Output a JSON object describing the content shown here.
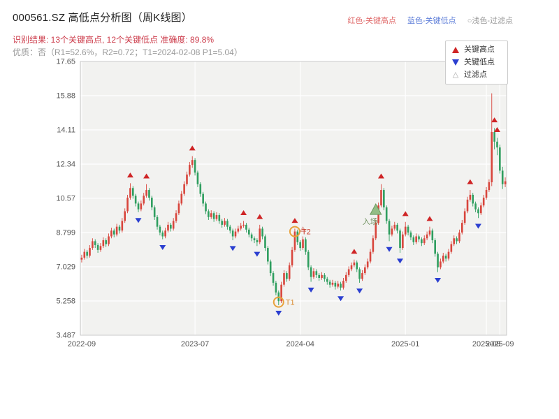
{
  "header": {
    "title": "000561.SZ 高低点分析图（周K线图）",
    "legend_inline": [
      {
        "label": "红色-关键高点",
        "color": "#e06c6c"
      },
      {
        "label": "蓝色-关键低点",
        "color": "#5f7fd9"
      },
      {
        "label": "○浅色-过滤点",
        "color": "#999999"
      }
    ],
    "result_line": "识别结果: 13个关键高点, 12个关键低点  准确度: 89.8%",
    "quality_line": "优质：否（R1=52.6%，R2=0.72；T1=2024-02-08 P1=5.04）"
  },
  "legend_box": {
    "items": [
      {
        "label": "关键高点"
      },
      {
        "label": "关键低点"
      },
      {
        "label": "过滤点"
      }
    ]
  },
  "colors": {
    "up_candle": "#d8453c",
    "down_candle": "#2f9e5f",
    "key_high": "#cf2526",
    "key_low": "#2b3fd0",
    "filtered_fill": "#f4cdc6",
    "filtered_stroke": "#d89a92",
    "entry_fill": "#93bd85",
    "entry_stroke": "#6a9a5f",
    "entry_label": "#6b8e5a",
    "t_circle": "#e8a23c",
    "t1_label": "#d98b2f",
    "t2_label": "#cc4433",
    "plot_bg": "#f2f2f0",
    "grid": "#ffffff",
    "frame": "#c8c8c8",
    "tick_label": "#555555",
    "result_text": "#cc3b4a",
    "quality_text": "#9a9a9a",
    "title_text": "#222222"
  },
  "chart_data": {
    "type": "candlestick",
    "title": "000561.SZ 高低点分析图（周K线图）",
    "stats": {
      "key_high_count": 13,
      "key_low_count": 12,
      "accuracy": "89.8%"
    },
    "ylim": [
      3.487,
      17.65
    ],
    "y_ticks": [
      "3.487",
      "5.258",
      "7.029",
      "8.799",
      "10.57",
      "12.34",
      "14.11",
      "15.88",
      "17.65"
    ],
    "x_ticks": [
      {
        "i": 0,
        "label": "2022-09"
      },
      {
        "i": 42,
        "label": "2023-07"
      },
      {
        "i": 81,
        "label": "2024-04"
      },
      {
        "i": 120,
        "label": "2025-01"
      },
      {
        "i": 150,
        "label": "2025-08"
      },
      {
        "i": 155,
        "label": "2025-09"
      }
    ],
    "candles": [
      [
        7.4,
        7.65,
        7.25,
        7.5
      ],
      [
        7.5,
        7.95,
        7.4,
        7.8
      ],
      [
        7.8,
        7.9,
        7.45,
        7.6
      ],
      [
        7.6,
        8.15,
        7.5,
        8.0
      ],
      [
        8.0,
        8.5,
        7.9,
        8.35
      ],
      [
        8.35,
        8.45,
        8.0,
        8.15
      ],
      [
        8.15,
        8.25,
        7.75,
        7.9
      ],
      [
        7.9,
        8.25,
        7.8,
        8.1
      ],
      [
        8.1,
        8.55,
        8.0,
        8.4
      ],
      [
        8.4,
        8.5,
        8.05,
        8.2
      ],
      [
        8.2,
        8.75,
        8.1,
        8.6
      ],
      [
        8.6,
        9.05,
        8.5,
        8.9
      ],
      [
        8.9,
        9.0,
        8.55,
        8.7
      ],
      [
        8.7,
        9.25,
        8.6,
        9.1
      ],
      [
        9.1,
        9.2,
        8.75,
        8.9
      ],
      [
        8.9,
        9.55,
        8.8,
        9.4
      ],
      [
        9.4,
        10.05,
        9.3,
        9.9
      ],
      [
        9.9,
        10.75,
        9.8,
        10.6
      ],
      [
        10.6,
        11.35,
        10.5,
        11.1
      ],
      [
        11.1,
        11.2,
        10.55,
        10.7
      ],
      [
        10.7,
        10.8,
        10.15,
        10.3
      ],
      [
        10.3,
        10.4,
        9.85,
        10.0
      ],
      [
        10.0,
        10.45,
        9.9,
        10.3
      ],
      [
        10.3,
        10.85,
        10.2,
        10.7
      ],
      [
        10.7,
        11.3,
        10.6,
        11.0
      ],
      [
        11.0,
        11.1,
        10.45,
        10.6
      ],
      [
        10.6,
        10.7,
        9.95,
        10.1
      ],
      [
        10.1,
        10.2,
        9.45,
        9.6
      ],
      [
        9.6,
        9.7,
        8.95,
        9.1
      ],
      [
        9.1,
        9.2,
        8.65,
        8.8
      ],
      [
        8.8,
        8.9,
        8.45,
        8.6
      ],
      [
        8.6,
        9.05,
        8.5,
        8.9
      ],
      [
        8.9,
        9.35,
        8.8,
        9.2
      ],
      [
        9.2,
        9.3,
        8.85,
        9.0
      ],
      [
        9.0,
        9.55,
        8.9,
        9.4
      ],
      [
        9.4,
        9.95,
        9.3,
        9.8
      ],
      [
        9.8,
        10.45,
        9.7,
        10.3
      ],
      [
        10.3,
        10.95,
        10.2,
        10.8
      ],
      [
        10.8,
        11.45,
        10.7,
        11.3
      ],
      [
        11.3,
        11.95,
        11.2,
        11.8
      ],
      [
        11.8,
        12.45,
        11.7,
        12.3
      ],
      [
        12.3,
        12.75,
        12.15,
        12.55
      ],
      [
        12.55,
        12.65,
        11.75,
        11.9
      ],
      [
        11.9,
        12.0,
        11.15,
        11.3
      ],
      [
        11.3,
        11.4,
        10.65,
        10.8
      ],
      [
        10.8,
        10.9,
        10.15,
        10.3
      ],
      [
        10.3,
        10.4,
        9.75,
        9.9
      ],
      [
        9.9,
        10.0,
        9.45,
        9.6
      ],
      [
        9.6,
        9.95,
        9.5,
        9.8
      ],
      [
        9.8,
        9.9,
        9.35,
        9.5
      ],
      [
        9.5,
        9.85,
        9.4,
        9.7
      ],
      [
        9.7,
        9.8,
        9.25,
        9.4
      ],
      [
        9.4,
        9.5,
        9.05,
        9.2
      ],
      [
        9.2,
        9.55,
        9.1,
        9.4
      ],
      [
        9.4,
        9.5,
        8.95,
        9.1
      ],
      [
        9.1,
        9.2,
        8.75,
        8.9
      ],
      [
        8.9,
        9.0,
        8.4,
        8.6
      ],
      [
        8.6,
        9.0,
        8.5,
        8.85
      ],
      [
        8.85,
        9.15,
        8.75,
        9.0
      ],
      [
        9.0,
        9.3,
        8.9,
        9.15
      ],
      [
        9.15,
        9.4,
        9.05,
        9.2
      ],
      [
        9.2,
        9.3,
        8.8,
        8.95
      ],
      [
        8.95,
        9.05,
        8.55,
        8.7
      ],
      [
        8.7,
        8.8,
        8.35,
        8.5
      ],
      [
        8.5,
        8.6,
        8.25,
        8.4
      ],
      [
        8.4,
        8.5,
        8.1,
        8.3
      ],
      [
        8.3,
        9.2,
        8.2,
        9.0
      ],
      [
        9.0,
        9.1,
        8.45,
        8.6
      ],
      [
        8.6,
        8.7,
        7.85,
        8.0
      ],
      [
        8.0,
        8.1,
        7.15,
        7.3
      ],
      [
        7.3,
        7.4,
        6.55,
        6.7
      ],
      [
        6.7,
        6.8,
        6.05,
        6.2
      ],
      [
        6.2,
        6.3,
        5.55,
        5.7
      ],
      [
        5.7,
        5.8,
        5.04,
        5.25
      ],
      [
        5.25,
        6.25,
        5.15,
        6.1
      ],
      [
        6.1,
        6.85,
        6.0,
        6.7
      ],
      [
        6.7,
        6.8,
        6.25,
        6.4
      ],
      [
        6.4,
        7.25,
        6.3,
        7.1
      ],
      [
        7.1,
        8.05,
        7.0,
        7.9
      ],
      [
        7.9,
        9.0,
        7.8,
        8.85
      ],
      [
        8.85,
        8.95,
        8.15,
        8.3
      ],
      [
        8.3,
        8.4,
        7.85,
        8.0
      ],
      [
        8.0,
        8.6,
        7.9,
        8.45
      ],
      [
        8.45,
        8.55,
        7.65,
        7.8
      ],
      [
        7.8,
        7.9,
        6.85,
        7.0
      ],
      [
        7.0,
        7.1,
        6.25,
        6.5
      ],
      [
        6.5,
        6.95,
        6.4,
        6.8
      ],
      [
        6.8,
        6.9,
        6.45,
        6.6
      ],
      [
        6.6,
        6.7,
        6.3,
        6.45
      ],
      [
        6.45,
        6.75,
        6.35,
        6.6
      ],
      [
        6.6,
        6.7,
        6.25,
        6.4
      ],
      [
        6.4,
        6.5,
        6.1,
        6.25
      ],
      [
        6.25,
        6.35,
        5.95,
        6.1
      ],
      [
        6.1,
        6.35,
        6.0,
        6.2
      ],
      [
        6.2,
        6.3,
        5.85,
        6.0
      ],
      [
        6.0,
        6.3,
        5.9,
        6.15
      ],
      [
        6.15,
        6.25,
        5.8,
        5.95
      ],
      [
        5.95,
        6.45,
        5.85,
        6.3
      ],
      [
        6.3,
        6.75,
        6.2,
        6.6
      ],
      [
        6.6,
        7.05,
        6.5,
        6.9
      ],
      [
        6.9,
        7.25,
        6.8,
        7.1
      ],
      [
        7.1,
        7.4,
        7.0,
        7.25
      ],
      [
        7.25,
        7.35,
        6.75,
        6.9
      ],
      [
        6.9,
        7.0,
        6.2,
        6.4
      ],
      [
        6.4,
        6.85,
        6.3,
        6.7
      ],
      [
        6.7,
        7.15,
        6.6,
        7.0
      ],
      [
        7.0,
        7.45,
        6.9,
        7.3
      ],
      [
        7.3,
        7.95,
        7.2,
        7.8
      ],
      [
        7.8,
        8.65,
        7.7,
        8.5
      ],
      [
        8.5,
        9.45,
        8.4,
        9.3
      ],
      [
        9.3,
        10.35,
        9.2,
        10.2
      ],
      [
        10.2,
        11.3,
        10.1,
        11.0
      ],
      [
        11.0,
        11.1,
        9.95,
        10.1
      ],
      [
        10.1,
        10.2,
        9.25,
        9.4
      ],
      [
        9.4,
        9.5,
        8.35,
        8.7
      ],
      [
        8.7,
        9.15,
        8.6,
        9.0
      ],
      [
        9.0,
        9.35,
        8.9,
        9.2
      ],
      [
        9.2,
        9.3,
        8.75,
        8.9
      ],
      [
        8.9,
        9.0,
        7.75,
        8.0
      ],
      [
        8.0,
        8.85,
        7.9,
        8.7
      ],
      [
        8.7,
        9.35,
        8.6,
        9.1
      ],
      [
        9.1,
        9.2,
        8.65,
        8.8
      ],
      [
        8.8,
        8.9,
        8.4,
        8.55
      ],
      [
        8.55,
        8.65,
        8.15,
        8.3
      ],
      [
        8.3,
        8.75,
        8.2,
        8.6
      ],
      [
        8.6,
        8.7,
        8.3,
        8.45
      ],
      [
        8.45,
        8.55,
        8.1,
        8.25
      ],
      [
        8.25,
        8.65,
        8.15,
        8.5
      ],
      [
        8.5,
        8.85,
        8.4,
        8.7
      ],
      [
        8.7,
        9.1,
        8.6,
        8.9
      ],
      [
        8.9,
        9.0,
        8.25,
        8.4
      ],
      [
        8.4,
        8.5,
        7.55,
        7.7
      ],
      [
        7.7,
        7.8,
        6.75,
        7.0
      ],
      [
        7.0,
        7.45,
        6.9,
        7.3
      ],
      [
        7.3,
        7.75,
        7.2,
        7.6
      ],
      [
        7.6,
        7.7,
        7.3,
        7.45
      ],
      [
        7.45,
        7.95,
        7.35,
        7.8
      ],
      [
        7.8,
        8.35,
        7.7,
        8.2
      ],
      [
        8.2,
        8.65,
        8.1,
        8.5
      ],
      [
        8.5,
        8.6,
        8.2,
        8.35
      ],
      [
        8.35,
        8.95,
        8.25,
        8.8
      ],
      [
        8.8,
        9.45,
        8.7,
        9.3
      ],
      [
        9.3,
        10.05,
        9.2,
        9.9
      ],
      [
        9.9,
        10.65,
        9.8,
        10.5
      ],
      [
        10.5,
        11.0,
        10.4,
        10.75
      ],
      [
        10.75,
        10.85,
        10.15,
        10.3
      ],
      [
        10.3,
        10.4,
        9.85,
        10.0
      ],
      [
        10.0,
        10.1,
        9.55,
        9.8
      ],
      [
        9.8,
        10.35,
        9.7,
        10.2
      ],
      [
        10.2,
        10.75,
        10.1,
        10.6
      ],
      [
        10.6,
        11.15,
        10.5,
        11.0
      ],
      [
        11.0,
        11.55,
        10.9,
        11.4
      ],
      [
        11.4,
        16.0,
        11.2,
        14.0
      ],
      [
        14.0,
        14.2,
        13.1,
        13.5
      ],
      [
        13.5,
        13.7,
        12.8,
        13.2
      ],
      [
        13.2,
        13.35,
        11.85,
        12.0
      ],
      [
        12.0,
        12.2,
        11.05,
        11.3
      ],
      [
        11.3,
        11.65,
        11.15,
        11.45
      ]
    ],
    "markers": {
      "key_highs": [
        {
          "i": 18,
          "p": 11.65
        },
        {
          "i": 24,
          "p": 11.6
        },
        {
          "i": 41,
          "p": 13.05
        },
        {
          "i": 60,
          "p": 9.7
        },
        {
          "i": 66,
          "p": 9.5
        },
        {
          "i": 79,
          "p": 9.3
        },
        {
          "i": 101,
          "p": 7.7
        },
        {
          "i": 111,
          "p": 11.6
        },
        {
          "i": 120,
          "p": 9.65
        },
        {
          "i": 129,
          "p": 9.4
        },
        {
          "i": 144,
          "p": 11.3
        },
        {
          "i": 153,
          "p": 14.5
        },
        {
          "i": 154,
          "p": 14.0
        }
      ],
      "key_lows": [
        {
          "i": 21,
          "p": 9.55
        },
        {
          "i": 30,
          "p": 8.15
        },
        {
          "i": 56,
          "p": 8.1
        },
        {
          "i": 65,
          "p": 7.8
        },
        {
          "i": 73,
          "p": 4.75
        },
        {
          "i": 85,
          "p": 5.95
        },
        {
          "i": 96,
          "p": 5.5
        },
        {
          "i": 103,
          "p": 5.9
        },
        {
          "i": 114,
          "p": 8.05
        },
        {
          "i": 118,
          "p": 7.45
        },
        {
          "i": 132,
          "p": 6.45
        },
        {
          "i": 147,
          "p": 9.25
        }
      ],
      "filtered": [
        {
          "i": 82,
          "p": 8.85
        }
      ]
    },
    "annotations": {
      "t1": {
        "label": "T1",
        "i": 73,
        "price": 5.2
      },
      "t2": {
        "label": "T2",
        "i": 79,
        "price": 8.85
      },
      "entry": {
        "label": "入场",
        "i": 109,
        "price": 9.95
      }
    }
  }
}
